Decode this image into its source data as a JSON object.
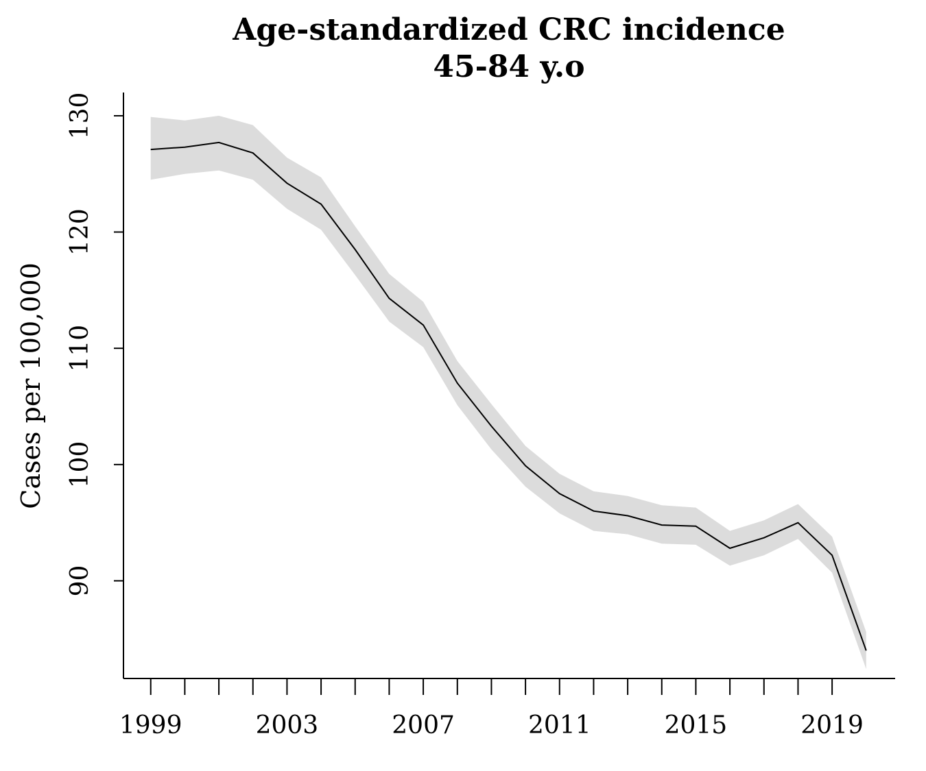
{
  "chart_data": {
    "type": "line",
    "title": [
      "Age-standardized CRC incidence",
      "45-84 y.o"
    ],
    "xlabel": "",
    "ylabel": "Cases per 100,000",
    "x": [
      1999,
      2000,
      2001,
      2002,
      2003,
      2004,
      2005,
      2006,
      2007,
      2008,
      2009,
      2010,
      2011,
      2012,
      2013,
      2014,
      2015,
      2016,
      2017,
      2018,
      2019,
      2020
    ],
    "series": [
      {
        "values": [
          127.1,
          127.3,
          127.7,
          126.8,
          124.2,
          122.4,
          118.5,
          114.3,
          112.0,
          107.0,
          103.3,
          99.9,
          97.5,
          96.0,
          95.6,
          94.8,
          94.7,
          92.8,
          93.7,
          95.0,
          92.2,
          84.0
        ],
        "lower": [
          124.5,
          125.0,
          125.3,
          124.5,
          122.0,
          120.2,
          116.3,
          112.3,
          110.1,
          105.1,
          101.3,
          98.1,
          95.8,
          94.3,
          94.0,
          93.2,
          93.1,
          91.3,
          92.2,
          93.6,
          90.7,
          82.4
        ],
        "upper": [
          129.9,
          129.6,
          130.0,
          129.2,
          126.4,
          124.7,
          120.5,
          116.4,
          114.0,
          108.9,
          105.2,
          101.6,
          99.2,
          97.7,
          97.3,
          96.5,
          96.3,
          94.3,
          95.2,
          96.6,
          93.8,
          85.6
        ]
      }
    ],
    "xticks": [
      1999,
      2000,
      2001,
      2002,
      2003,
      2004,
      2005,
      2006,
      2007,
      2008,
      2009,
      2010,
      2011,
      2012,
      2013,
      2014,
      2015,
      2016,
      2017,
      2018,
      2019
    ],
    "xtick_labels": [
      "1999",
      "",
      "",
      "",
      "2003",
      "",
      "",
      "",
      "2007",
      "",
      "",
      "",
      "2011",
      "",
      "",
      "",
      "2015",
      "",
      "",
      "",
      "2019"
    ],
    "yticks": [
      90,
      100,
      110,
      120,
      130
    ],
    "ytick_labels": [
      "90",
      "100",
      "110",
      "120",
      "130"
    ],
    "xlim": [
      1998.2,
      2020.85
    ],
    "ylim": [
      81.6,
      132.0
    ],
    "grid": false,
    "colors": {
      "line": "#000000",
      "band": "#dcdcdc",
      "axis": "#000000"
    }
  }
}
